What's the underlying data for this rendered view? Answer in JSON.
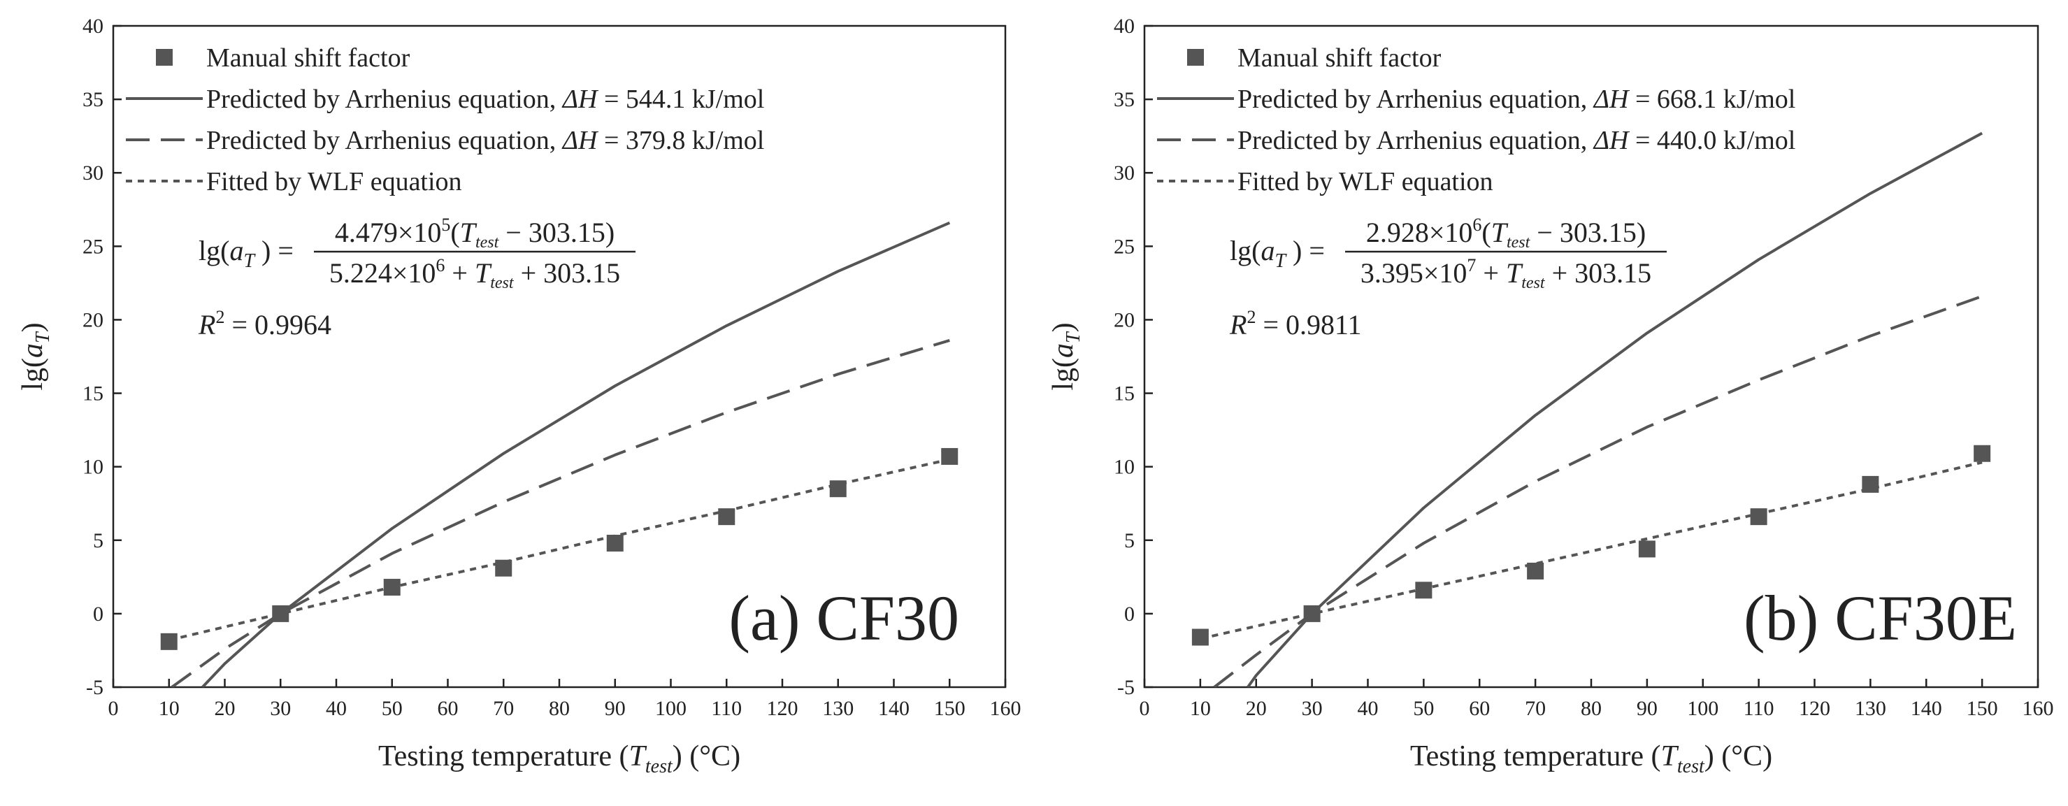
{
  "colors": {
    "series": "#555555",
    "axis": "#222222",
    "text": "#222222"
  },
  "chart_data": [
    {
      "type": "scatter",
      "panel_label": "(a) CF30",
      "xlabel": {
        "prefix": "Testing temperature (",
        "var": "T",
        "sub": "test",
        "suffix": ") (°C)"
      },
      "ylabel": {
        "prefix": "lg(",
        "var": "a",
        "sub": "T",
        "suffix": ")"
      },
      "xlim": [
        0,
        160
      ],
      "ylim": [
        -5,
        40
      ],
      "xticks": [
        0,
        10,
        20,
        30,
        40,
        50,
        60,
        70,
        80,
        90,
        100,
        110,
        120,
        130,
        140,
        150,
        160
      ],
      "yticks": [
        -5,
        0,
        5,
        10,
        15,
        20,
        25,
        30,
        35,
        40
      ],
      "legend": {
        "manual": "Manual shift factor",
        "arrh1": {
          "prefix": "Predicted by Arrhenius equation, ",
          "var": "ΔH",
          "value": " = 544.1 kJ/mol"
        },
        "arrh2": {
          "prefix": "Predicted by Arrhenius equation, ",
          "var": "ΔH",
          "value": " = 379.8 kJ/mol"
        },
        "wlf": "Fitted by WLF equation"
      },
      "equation": {
        "lhs": "lg(a",
        "lhs_sub": "T",
        "lhs_close": ") =",
        "num_coef": "4.479×10",
        "num_exp": "5",
        "num_paren_open": "(",
        "num_var": "T",
        "num_var_sub": "test",
        "num_rest": " − 303.15)",
        "den_coef": "5.224×10",
        "den_exp": "6",
        "den_plus": " + ",
        "den_var": "T",
        "den_var_sub": "test",
        "den_rest": " + 303.15",
        "r2_label": "R",
        "r2_exp": "2",
        "r2_value": " = 0.9964"
      },
      "series": [
        {
          "name": "Manual shift factor",
          "style": "markers",
          "x": [
            10,
            30,
            50,
            70,
            90,
            110,
            130,
            150
          ],
          "y": [
            -1.9,
            0.0,
            1.8,
            3.1,
            4.8,
            6.6,
            8.5,
            10.7
          ]
        },
        {
          "name": "Arrhenius ΔH = 544.1 kJ/mol",
          "style": "solid",
          "x": [
            16,
            20,
            30,
            50,
            70,
            90,
            110,
            130,
            150
          ],
          "y": [
            -5.0,
            -3.4,
            0.0,
            5.8,
            10.9,
            15.5,
            19.6,
            23.3,
            26.6
          ]
        },
        {
          "name": "Arrhenius ΔH = 379.8 kJ/mol",
          "style": "dash",
          "x": [
            10.5,
            20,
            30,
            50,
            70,
            90,
            110,
            130,
            150
          ],
          "y": [
            -5.0,
            -2.4,
            0.0,
            4.1,
            7.6,
            10.8,
            13.7,
            16.3,
            18.6
          ]
        },
        {
          "name": "WLF fit",
          "style": "dot",
          "x": [
            10,
            30,
            50,
            70,
            90,
            110,
            130,
            150
          ],
          "y": [
            -1.8,
            0.0,
            1.8,
            3.5,
            5.3,
            7.0,
            8.8,
            10.5
          ]
        }
      ]
    },
    {
      "type": "scatter",
      "panel_label": "(b) CF30E",
      "xlabel": {
        "prefix": "Testing temperature (",
        "var": "T",
        "sub": "test",
        "suffix": ") (°C)"
      },
      "ylabel": {
        "prefix": "lg(",
        "var": "a",
        "sub": "T",
        "suffix": ")"
      },
      "xlim": [
        0,
        160
      ],
      "ylim": [
        -5,
        40
      ],
      "xticks": [
        0,
        10,
        20,
        30,
        40,
        50,
        60,
        70,
        80,
        90,
        100,
        110,
        120,
        130,
        140,
        150,
        160
      ],
      "yticks": [
        -5,
        0,
        5,
        10,
        15,
        20,
        25,
        30,
        35,
        40
      ],
      "legend": {
        "manual": "Manual shift factor",
        "arrh1": {
          "prefix": "Predicted by Arrhenius equation, ",
          "var": "ΔH",
          "value": " = 668.1 kJ/mol"
        },
        "arrh2": {
          "prefix": "Predicted by Arrhenius equation, ",
          "var": "ΔH",
          "value": " = 440.0 kJ/mol"
        },
        "wlf": "Fitted by WLF equation"
      },
      "equation": {
        "lhs": "lg(a",
        "lhs_sub": "T",
        "lhs_close": ") =",
        "num_coef": "2.928×10",
        "num_exp": "6",
        "num_paren_open": "(",
        "num_var": "T",
        "num_var_sub": "test",
        "num_rest": " − 303.15)",
        "den_coef": "3.395×10",
        "den_exp": "7",
        "den_plus": " + ",
        "den_var": "T",
        "den_var_sub": "test",
        "den_rest": " + 303.15",
        "r2_label": "R",
        "r2_exp": "2",
        "r2_value": " = 0.9811"
      },
      "series": [
        {
          "name": "Manual shift factor",
          "style": "markers",
          "x": [
            10,
            30,
            50,
            70,
            90,
            110,
            130,
            150
          ],
          "y": [
            -1.6,
            0.0,
            1.6,
            2.9,
            4.4,
            6.6,
            8.8,
            10.9
          ]
        },
        {
          "name": "Arrhenius ΔH = 668.1 kJ/mol",
          "style": "solid",
          "x": [
            18.5,
            20,
            30,
            50,
            70,
            90,
            110,
            130,
            150
          ],
          "y": [
            -5.0,
            -4.2,
            0.0,
            7.2,
            13.5,
            19.1,
            24.1,
            28.6,
            32.7
          ]
        },
        {
          "name": "Arrhenius ΔH = 440.0 kJ/mol",
          "style": "dash",
          "x": [
            12.5,
            20,
            30,
            50,
            70,
            90,
            110,
            130,
            150
          ],
          "y": [
            -5.0,
            -2.8,
            0.0,
            4.8,
            9.0,
            12.7,
            15.9,
            18.9,
            21.6
          ]
        },
        {
          "name": "WLF fit",
          "style": "dot",
          "x": [
            10,
            30,
            50,
            70,
            90,
            110,
            130,
            150
          ],
          "y": [
            -1.7,
            0.0,
            1.7,
            3.4,
            5.1,
            6.8,
            8.5,
            10.3
          ]
        }
      ]
    }
  ]
}
